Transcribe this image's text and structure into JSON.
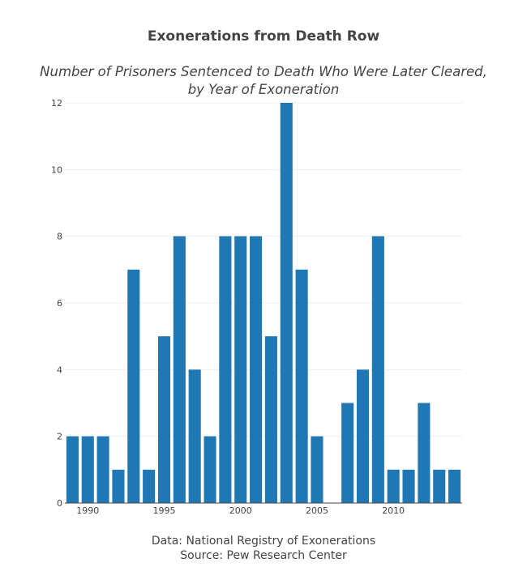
{
  "chart_data": {
    "type": "bar",
    "title": "Exonerations from Death Row",
    "subtitle_lines": [
      "Number of Prisoners Sentenced to Death Who Were Later Cleared,",
      "by Year of Exoneration"
    ],
    "xlabel": "",
    "ylabel": "",
    "x": [
      1989,
      1990,
      1991,
      1992,
      1993,
      1994,
      1995,
      1996,
      1997,
      1998,
      1999,
      2000,
      2001,
      2002,
      2003,
      2004,
      2005,
      2006,
      2007,
      2008,
      2009,
      2010,
      2011,
      2012,
      2013,
      2014
    ],
    "values": [
      2,
      2,
      2,
      1,
      7,
      1,
      5,
      8,
      4,
      2,
      8,
      8,
      8,
      5,
      12,
      7,
      2,
      0,
      3,
      4,
      8,
      1,
      1,
      3,
      1,
      1
    ],
    "ylim": [
      0,
      12
    ],
    "y_ticks": [
      "0",
      "2",
      "4",
      "6",
      "8",
      "10",
      "12"
    ],
    "x_ticks": [
      "1990",
      "1995",
      "2000",
      "2005",
      "2010"
    ],
    "grid": true,
    "bar_color": "#1f77b4",
    "notes": [
      "Data: National Registry of Exonerations",
      "Source: Pew Research Center"
    ]
  }
}
